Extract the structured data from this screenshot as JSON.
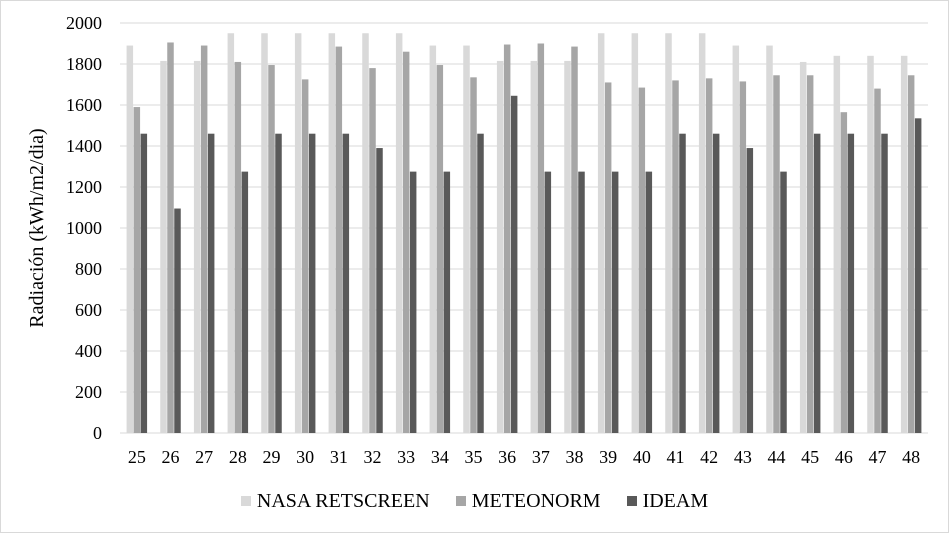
{
  "chart_data": {
    "type": "bar",
    "title": "",
    "xlabel": "",
    "ylabel": "Radiación (kWh/m2/dia)",
    "ylim": [
      0,
      2000
    ],
    "yticks": [
      0,
      200,
      400,
      600,
      800,
      1000,
      1200,
      1400,
      1600,
      1800,
      2000
    ],
    "grid": true,
    "legend_position": "bottom",
    "categories": [
      "25",
      "26",
      "27",
      "28",
      "29",
      "30",
      "31",
      "32",
      "33",
      "34",
      "35",
      "36",
      "37",
      "38",
      "39",
      "40",
      "41",
      "42",
      "43",
      "44",
      "45",
      "46",
      "47",
      "48"
    ],
    "series": [
      {
        "name": "NASA RETSCREEN",
        "color": "#d9d9d9",
        "values": [
          1890,
          1815,
          1815,
          1950,
          1950,
          1950,
          1950,
          1950,
          1950,
          1890,
          1890,
          1815,
          1815,
          1815,
          1950,
          1950,
          1950,
          1950,
          1890,
          1890,
          1810,
          1840,
          1840,
          1840
        ]
      },
      {
        "name": "METEONORM",
        "color": "#a6a6a6",
        "values": [
          1590,
          1905,
          1890,
          1810,
          1795,
          1725,
          1885,
          1780,
          1860,
          1795,
          1735,
          1895,
          1900,
          1885,
          1710,
          1685,
          1720,
          1730,
          1715,
          1745,
          1745,
          1565,
          1680,
          1745
        ]
      },
      {
        "name": "IDEAM",
        "color": "#595959",
        "values": [
          1460,
          1095,
          1460,
          1275,
          1460,
          1460,
          1460,
          1390,
          1275,
          1275,
          1460,
          1645,
          1275,
          1275,
          1275,
          1275,
          1460,
          1460,
          1390,
          1275,
          1460,
          1460,
          1460,
          1535
        ]
      }
    ]
  }
}
